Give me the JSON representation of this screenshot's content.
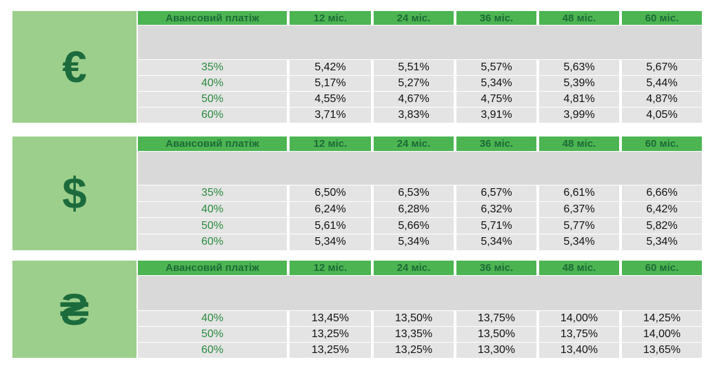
{
  "tables": [
    {
      "symbol": "€",
      "header": [
        "Авансовий платіж",
        "12 міс.",
        "24 міс.",
        "36 міс.",
        "48 міс.",
        "60 міс."
      ],
      "rows": [
        [
          "35%",
          "5,42%",
          "5,51%",
          "5,57%",
          "5,63%",
          "5,67%"
        ],
        [
          "40%",
          "5,17%",
          "5,27%",
          "5,34%",
          "5,39%",
          "5,44%"
        ],
        [
          "50%",
          "4,55%",
          "4,67%",
          "4,75%",
          "4,81%",
          "4,87%"
        ],
        [
          "60%",
          "3,71%",
          "3,83%",
          "3,91%",
          "3,99%",
          "4,05%"
        ]
      ]
    },
    {
      "symbol": "$",
      "header": [
        "Авансовий платіж",
        "12 міс.",
        "24 міс.",
        "36 міс.",
        "48 міс.",
        "60 міс."
      ],
      "rows": [
        [
          "35%",
          "6,50%",
          "6,53%",
          "6,57%",
          "6,61%",
          "6,66%"
        ],
        [
          "40%",
          "6,24%",
          "6,28%",
          "6,32%",
          "6,37%",
          "6,42%"
        ],
        [
          "50%",
          "5,61%",
          "5,66%",
          "5,71%",
          "5,77%",
          "5,82%"
        ],
        [
          "60%",
          "5,34%",
          "5,34%",
          "5,34%",
          "5,34%",
          "5,34%"
        ]
      ]
    },
    {
      "symbol": "₴",
      "header": [
        "Авансовий платіж",
        "12 міс.",
        "24 міс.",
        "36 міс.",
        "48 міс.",
        "60 міс."
      ],
      "rows": [
        [
          "40%",
          "13,45%",
          "13,50%",
          "13,75%",
          "14,00%",
          "14,25%"
        ],
        [
          "50%",
          "13,25%",
          "13,35%",
          "13,50%",
          "13,75%",
          "14,00%"
        ],
        [
          "60%",
          "13,25%",
          "13,25%",
          "13,30%",
          "13,40%",
          "13,65%"
        ]
      ]
    }
  ]
}
